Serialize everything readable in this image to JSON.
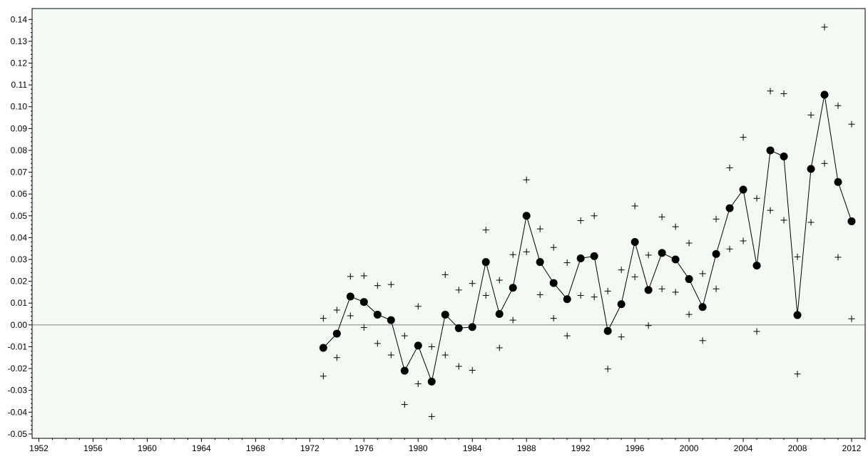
{
  "chart_data": {
    "type": "line",
    "title": "",
    "xlabel": "",
    "ylabel": "",
    "xlim": [
      1951,
      1213
    ],
    "xlim_note": "",
    "x_range": [
      1951.5,
      2013
    ],
    "ylim": [
      -0.052,
      0.145
    ],
    "x_ticks": [
      1952,
      1956,
      1960,
      1964,
      1968,
      1972,
      1976,
      1980,
      1984,
      1988,
      1992,
      1996,
      2000,
      2004,
      2008,
      2012
    ],
    "y_ticks": [
      -0.05,
      -0.04,
      -0.03,
      -0.02,
      -0.01,
      0.0,
      0.01,
      0.02,
      0.03,
      0.04,
      0.05,
      0.06,
      0.07,
      0.08,
      0.09,
      0.1,
      0.11,
      0.12,
      0.13,
      0.14
    ],
    "y_tick_labels": [
      "-0.05",
      "-0.04",
      "-0.03",
      "-0.02",
      "-0.01",
      "0.00",
      "0.01",
      "0.02",
      "0.03",
      "0.04",
      "0.05",
      "0.06",
      "0.07",
      "0.08",
      "0.09",
      "0.10",
      "0.11",
      "0.12",
      "0.13",
      "0.14"
    ],
    "reference_line_y": 0,
    "grid": false,
    "colors": {
      "background": "#f3faf3",
      "line": "#000000",
      "marker": "#000000",
      "axis": "#000000",
      "reference": "#808080"
    },
    "series": [
      {
        "kind": "estimate",
        "marker": "filled-circle",
        "x": [
          1973,
          1974,
          1975,
          1976,
          1977,
          1978,
          1979,
          1980,
          1981,
          1982,
          1983,
          1984,
          1985,
          1986,
          1987,
          1988,
          1989,
          1990,
          1991,
          1992,
          1993,
          1994,
          1995,
          1996,
          1997,
          1998,
          1999,
          2000,
          2001,
          2002,
          2003,
          2004,
          2005,
          2006,
          2007,
          2008,
          2009,
          2010,
          2011,
          2012
        ],
        "values": [
          -0.0105,
          -0.004,
          0.013,
          0.0105,
          0.0047,
          0.0022,
          -0.021,
          -0.0095,
          -0.026,
          0.0047,
          -0.0015,
          -0.001,
          0.0288,
          0.005,
          0.017,
          0.05,
          0.0288,
          0.0192,
          0.0118,
          0.0305,
          0.0315,
          -0.0028,
          0.0095,
          0.038,
          0.016,
          0.033,
          0.03,
          0.021,
          0.0082,
          0.0325,
          0.0535,
          0.062,
          0.0272,
          0.08,
          0.0772,
          0.0045,
          0.0715,
          0.1055,
          0.0655,
          0.0475
        ]
      },
      {
        "kind": "upper-bound",
        "marker": "plus",
        "x": [
          1973,
          1974,
          1975,
          1976,
          1977,
          1978,
          1979,
          1980,
          1981,
          1982,
          1983,
          1984,
          1985,
          1986,
          1987,
          1988,
          1989,
          1990,
          1991,
          1992,
          1993,
          1994,
          1995,
          1996,
          1997,
          1998,
          1999,
          2000,
          2001,
          2002,
          2003,
          2004,
          2005,
          2006,
          2007,
          2008,
          2009,
          2010,
          2011,
          2012
        ],
        "values": [
          0.003,
          0.0068,
          0.0222,
          0.0225,
          0.018,
          0.0185,
          -0.005,
          0.0085,
          -0.01,
          0.023,
          0.016,
          0.019,
          0.0435,
          0.0205,
          0.0322,
          0.0665,
          0.044,
          0.0355,
          0.0285,
          0.0478,
          0.05,
          0.0155,
          0.0252,
          0.0545,
          0.032,
          0.0495,
          0.045,
          0.0375,
          0.0235,
          0.0485,
          0.072,
          0.086,
          0.058,
          0.1072,
          0.106,
          0.0312,
          0.0962,
          0.1365,
          0.1005,
          0.092
        ]
      },
      {
        "kind": "lower-bound",
        "marker": "plus",
        "x": [
          1973,
          1974,
          1975,
          1976,
          1977,
          1978,
          1979,
          1980,
          1981,
          1982,
          1983,
          1984,
          1985,
          1986,
          1987,
          1988,
          1989,
          1990,
          1991,
          1992,
          1993,
          1994,
          1995,
          1996,
          1997,
          1998,
          1999,
          2000,
          2001,
          2002,
          2003,
          2004,
          2005,
          2006,
          2007,
          2008,
          2009,
          2010,
          2011,
          2012
        ],
        "values": [
          -0.0235,
          -0.015,
          0.0042,
          -0.0012,
          -0.0085,
          -0.0138,
          -0.0365,
          -0.027,
          -0.042,
          -0.0138,
          -0.019,
          -0.0208,
          0.0135,
          -0.0105,
          0.0022,
          0.0335,
          0.0138,
          0.003,
          -0.005,
          0.0135,
          0.0128,
          -0.0202,
          -0.0055,
          0.022,
          -0.0003,
          0.0165,
          0.015,
          0.0048,
          -0.0072,
          0.0165,
          0.0348,
          0.0385,
          -0.003,
          0.0525,
          0.048,
          -0.0225,
          0.047,
          0.074,
          0.031,
          0.0028
        ]
      }
    ]
  }
}
